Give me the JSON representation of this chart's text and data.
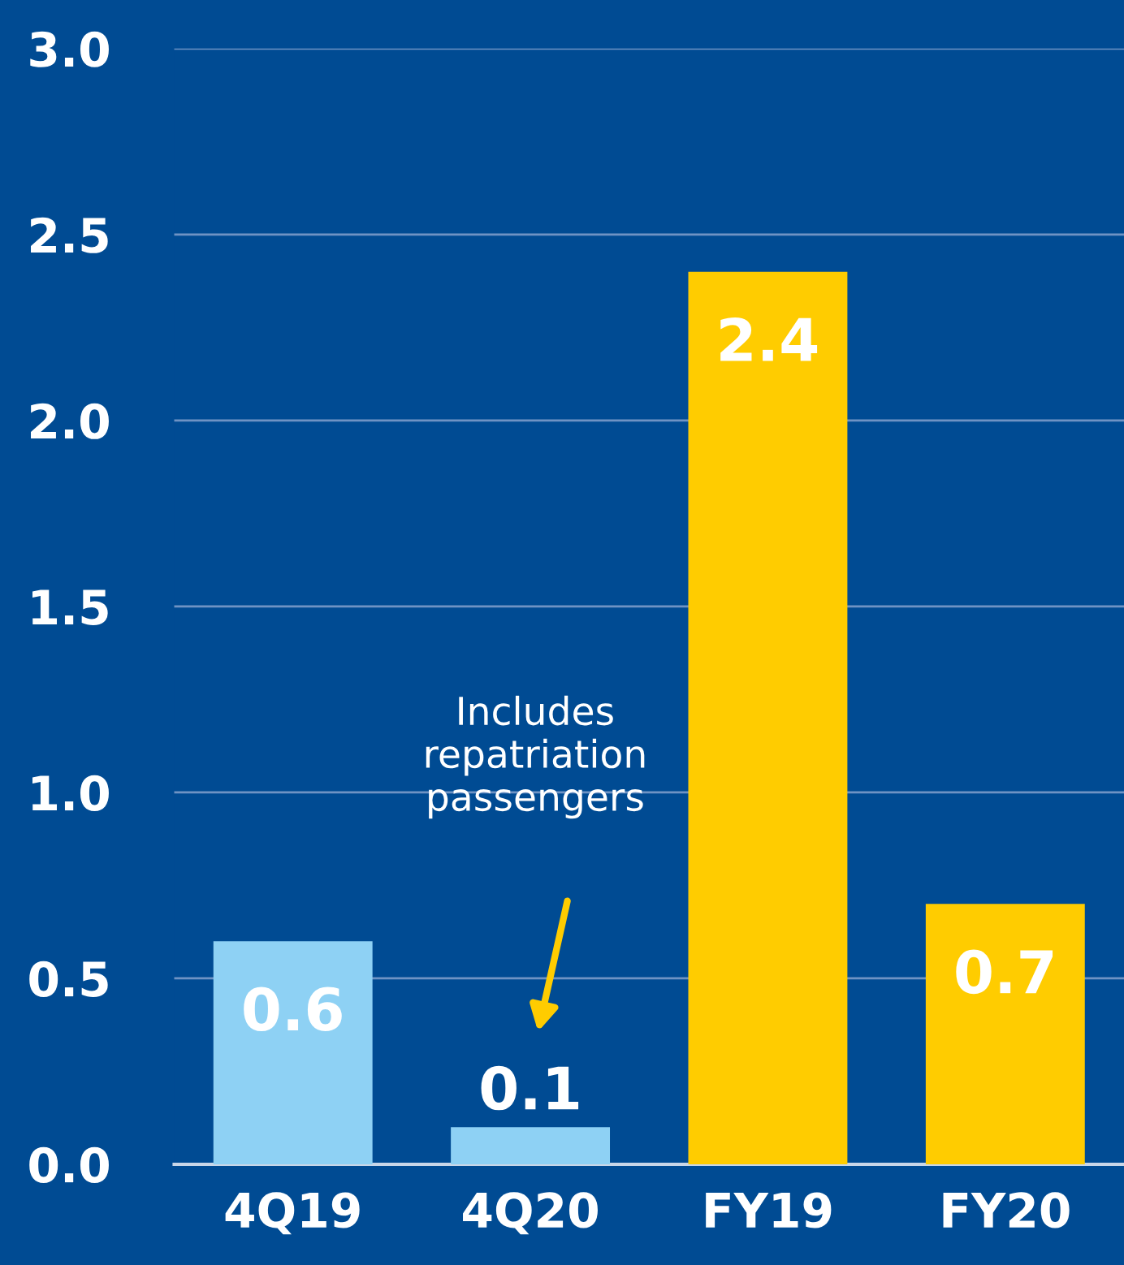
{
  "chart_data": {
    "type": "bar",
    "categories": [
      "4Q19",
      "4Q20",
      "FY19",
      "FY20"
    ],
    "values": [
      0.6,
      0.1,
      2.4,
      0.7
    ],
    "colors": [
      "#8ed1f4",
      "#8ed1f4",
      "#ffcc00",
      "#ffcc00"
    ],
    "ylim": [
      0,
      3.0
    ],
    "yticks": [
      {
        "value": 0,
        "label": "0.0"
      },
      {
        "value": 0.5,
        "label": "0.5"
      },
      {
        "value": 1,
        "label": "1.0"
      },
      {
        "value": 1.5,
        "label": "1.5"
      },
      {
        "value": 2,
        "label": "2.0"
      },
      {
        "value": 2.5,
        "label": "2.5"
      },
      {
        "value": 3,
        "label": "3.0"
      }
    ],
    "grid": "y",
    "data_labels": true,
    "annotations": [
      "Includes\nrepatriation\npassengers"
    ]
  }
}
